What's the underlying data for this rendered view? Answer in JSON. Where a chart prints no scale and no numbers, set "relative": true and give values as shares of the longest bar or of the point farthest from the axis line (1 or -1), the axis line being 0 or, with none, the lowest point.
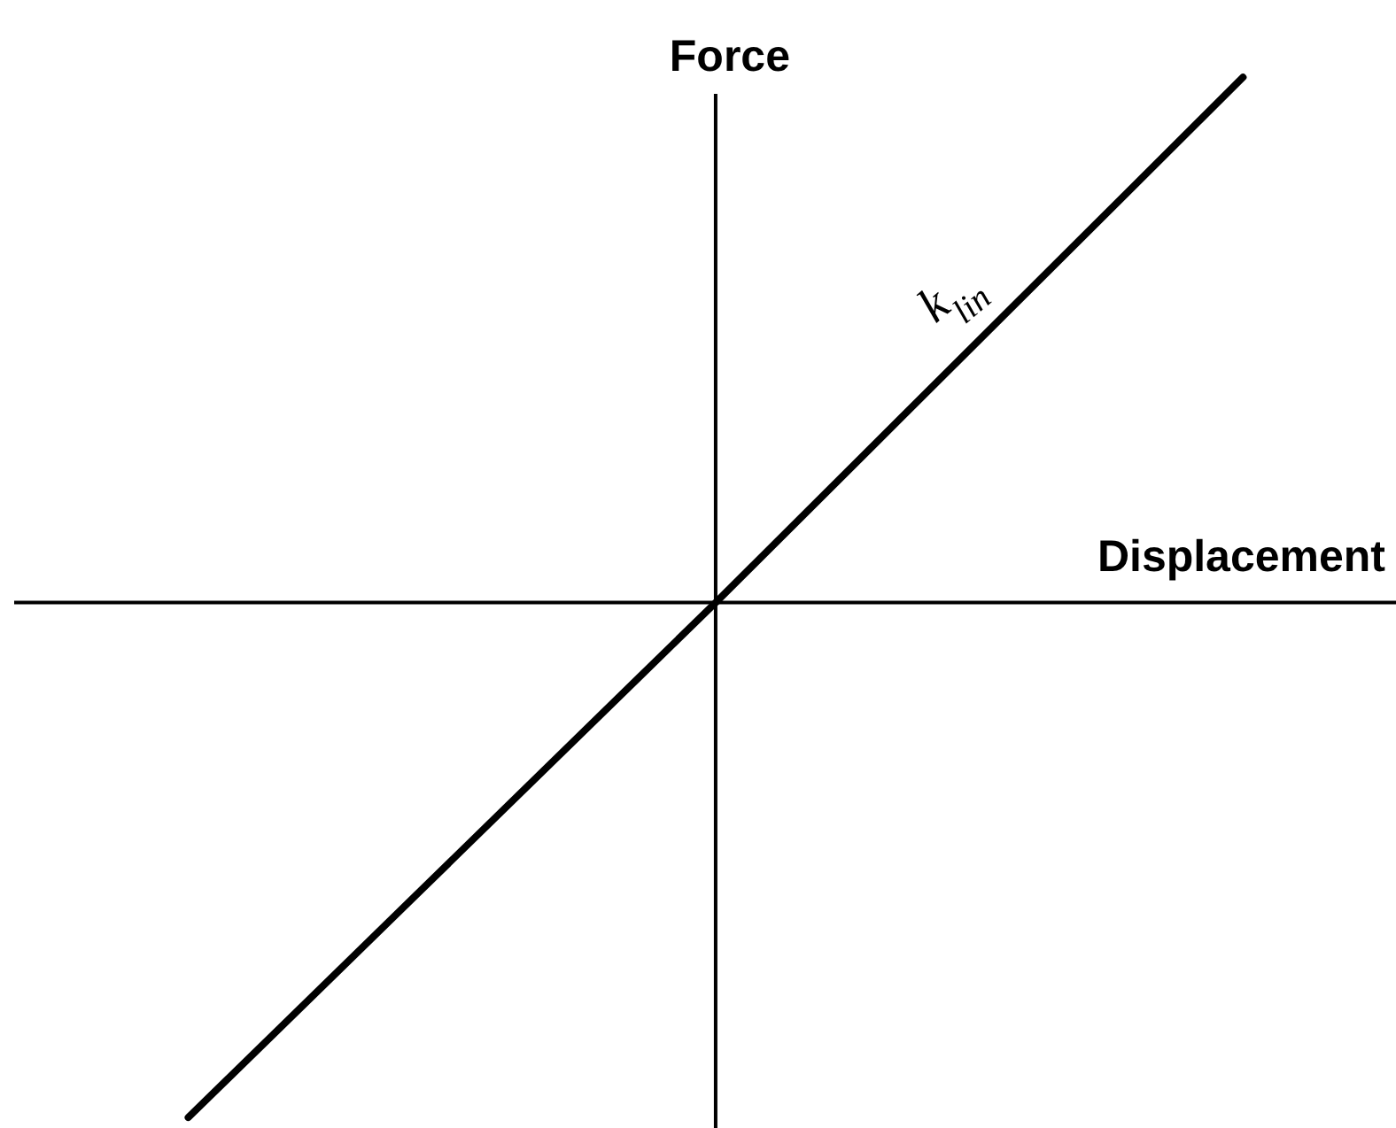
{
  "chart_data": {
    "type": "line",
    "xlabel": "Displacement",
    "ylabel": "Force",
    "categories": [
      null,
      null,
      null
    ],
    "series": [
      {
        "color": "#000000",
        "values": [
          -0.98,
          0,
          1
        ]
      }
    ],
    "relative": true,
    "marker": "none",
    "line_style": "solid",
    "annotations": [
      "k$_{lin}$"
    ]
  }
}
